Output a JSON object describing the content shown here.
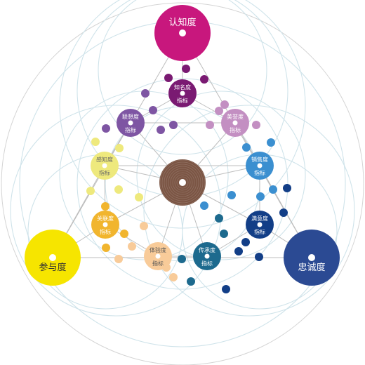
{
  "center": {
    "color": "#7b5544"
  },
  "major": [
    {
      "id": "cognition",
      "label": "认知度",
      "color": "#c8177d"
    },
    {
      "id": "participation",
      "label": "参与度",
      "color": "#f6e500"
    },
    {
      "id": "loyalty",
      "label": "忠诚度",
      "color": "#2b4a93"
    }
  ],
  "indices": [
    {
      "id": "awareness",
      "label": "知名度",
      "sub": "指标",
      "color": "#7a1a72"
    },
    {
      "id": "association",
      "label": "联想度",
      "sub": "指标",
      "color": "#7e55a3"
    },
    {
      "id": "reputation",
      "label": "美誉度",
      "sub": "指标",
      "color": "#c38fc2"
    },
    {
      "id": "perception",
      "label": "感知度",
      "sub": "指标",
      "color": "#eee97d"
    },
    {
      "id": "relevance",
      "label": "关联度",
      "sub": "指标",
      "color": "#f1b52e"
    },
    {
      "id": "experience",
      "label": "体验度",
      "sub": "指标",
      "color": "#f8cb99"
    },
    {
      "id": "spread",
      "label": "传承度",
      "sub": "指标",
      "color": "#1d6a8e"
    },
    {
      "id": "satisfaction",
      "label": "满意度",
      "sub": "指标",
      "color": "#123e87"
    },
    {
      "id": "sales",
      "label": "销售度",
      "sub": "指标",
      "color": "#3b8fd0"
    }
  ]
}
